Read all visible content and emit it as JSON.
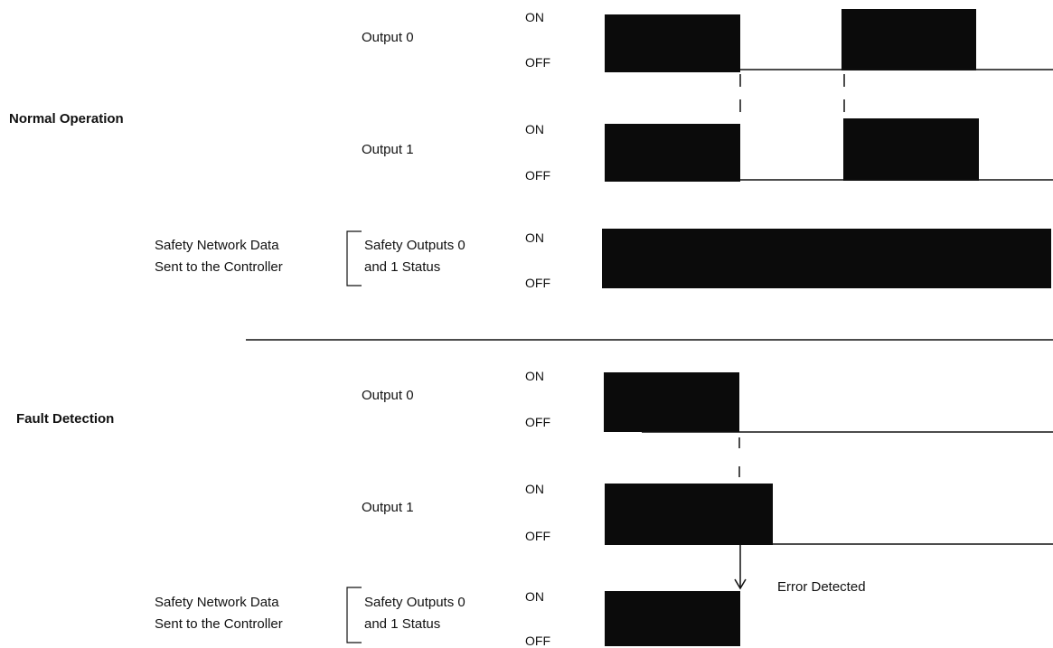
{
  "sections": {
    "normal": "Normal Operation",
    "fault": "Fault Detection"
  },
  "levels": {
    "on": "ON",
    "off": "OFF"
  },
  "signals": {
    "output0": "Output 0",
    "output1": "Output 1",
    "network_line1": "Safety Network Data",
    "network_line2": "Sent to the Controller",
    "status_line1": "Safety Outputs 0",
    "status_line2": "and 1 Status"
  },
  "annotations": {
    "error_detected": "Error Detected"
  },
  "colors": {
    "pulse": "#0b0b0b",
    "line": "#111111",
    "background": "#ffffff"
  }
}
